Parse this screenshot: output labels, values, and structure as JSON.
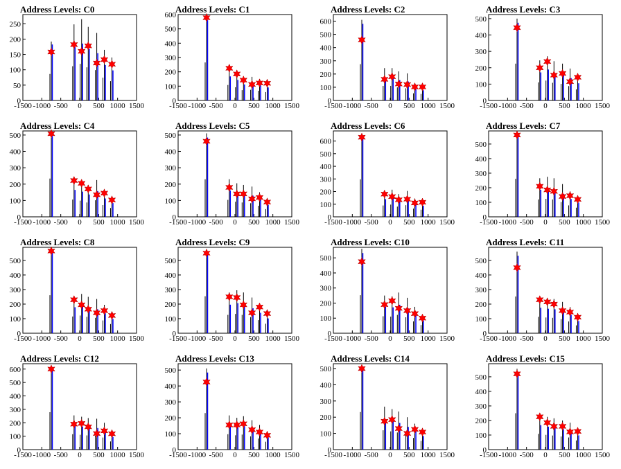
{
  "figure": {
    "x_tick_labels": [
      "-1500",
      "-1000",
      "-500",
      "0",
      "500",
      "1000",
      "1500"
    ],
    "colors": {
      "peak_marker": "#ff0000",
      "histogram": "#0000ff",
      "outline": "#000000"
    }
  },
  "chart_data": [
    {
      "type": "bar",
      "title": "Address Levels: C0",
      "xlim": [
        -1500,
        1500
      ],
      "ylim": [
        0,
        280
      ],
      "yticks": [
        0,
        50,
        100,
        150,
        200,
        250
      ],
      "peaks": [
        {
          "x": -750,
          "y": 158
        },
        {
          "x": -150,
          "y": 182
        },
        {
          "x": 50,
          "y": 160
        },
        {
          "x": 225,
          "y": 178
        },
        {
          "x": 450,
          "y": 122
        },
        {
          "x": 650,
          "y": 133
        },
        {
          "x": 850,
          "y": 118
        }
      ],
      "outline_peaks": [
        {
          "x": -750,
          "y": 192
        },
        {
          "x": -150,
          "y": 248
        },
        {
          "x": 50,
          "y": 265
        },
        {
          "x": 225,
          "y": 240
        },
        {
          "x": 450,
          "y": 220
        },
        {
          "x": 650,
          "y": 165
        },
        {
          "x": 850,
          "y": 140
        }
      ]
    },
    {
      "type": "bar",
      "title": "Address Levels: C1",
      "xlim": [
        -1500,
        1500
      ],
      "ylim": [
        0,
        600
      ],
      "yticks": [
        0,
        100,
        200,
        300,
        400,
        500,
        600
      ],
      "peaks": [
        {
          "x": -750,
          "y": 578
        },
        {
          "x": -150,
          "y": 225
        },
        {
          "x": 50,
          "y": 185
        },
        {
          "x": 225,
          "y": 142
        },
        {
          "x": 450,
          "y": 112
        },
        {
          "x": 650,
          "y": 122
        },
        {
          "x": 850,
          "y": 120
        }
      ],
      "outline_peaks": [
        {
          "x": -750,
          "y": 590
        },
        {
          "x": -150,
          "y": 240
        },
        {
          "x": 50,
          "y": 205
        },
        {
          "x": 225,
          "y": 160
        },
        {
          "x": 450,
          "y": 165
        },
        {
          "x": 650,
          "y": 150
        },
        {
          "x": 850,
          "y": 130
        }
      ]
    },
    {
      "type": "bar",
      "title": "Address Levels: C2",
      "xlim": [
        -1500,
        1500
      ],
      "ylim": [
        0,
        650
      ],
      "yticks": [
        0,
        100,
        200,
        300,
        400,
        500,
        600
      ],
      "peaks": [
        {
          "x": -750,
          "y": 458
        },
        {
          "x": -150,
          "y": 160
        },
        {
          "x": 50,
          "y": 180
        },
        {
          "x": 225,
          "y": 125
        },
        {
          "x": 450,
          "y": 120
        },
        {
          "x": 650,
          "y": 102
        },
        {
          "x": 850,
          "y": 102
        }
      ],
      "outline_peaks": [
        {
          "x": -750,
          "y": 610
        },
        {
          "x": -150,
          "y": 245
        },
        {
          "x": 50,
          "y": 245
        },
        {
          "x": 225,
          "y": 220
        },
        {
          "x": 450,
          "y": 205
        },
        {
          "x": 650,
          "y": 120
        },
        {
          "x": 850,
          "y": 110
        }
      ]
    },
    {
      "type": "bar",
      "title": "Address Levels: C3",
      "xlim": [
        -1500,
        1500
      ],
      "ylim": [
        0,
        525
      ],
      "yticks": [
        0,
        100,
        200,
        300,
        400,
        500
      ],
      "peaks": [
        {
          "x": -750,
          "y": 445
        },
        {
          "x": -150,
          "y": 200
        },
        {
          "x": 50,
          "y": 238
        },
        {
          "x": 225,
          "y": 155
        },
        {
          "x": 450,
          "y": 165
        },
        {
          "x": 650,
          "y": 115
        },
        {
          "x": 850,
          "y": 142
        }
      ],
      "outline_peaks": [
        {
          "x": -750,
          "y": 500
        },
        {
          "x": -150,
          "y": 245
        },
        {
          "x": 50,
          "y": 270
        },
        {
          "x": 225,
          "y": 240
        },
        {
          "x": 450,
          "y": 225
        },
        {
          "x": 650,
          "y": 195
        },
        {
          "x": 850,
          "y": 150
        }
      ]
    },
    {
      "type": "bar",
      "title": "Address Levels: C4",
      "xlim": [
        -1500,
        1500
      ],
      "ylim": [
        0,
        525
      ],
      "yticks": [
        0,
        100,
        200,
        300,
        400,
        500
      ],
      "peaks": [
        {
          "x": -750,
          "y": 508
        },
        {
          "x": -150,
          "y": 222
        },
        {
          "x": 50,
          "y": 205
        },
        {
          "x": 225,
          "y": 170
        },
        {
          "x": 450,
          "y": 135
        },
        {
          "x": 650,
          "y": 145
        },
        {
          "x": 850,
          "y": 103
        }
      ],
      "outline_peaks": [
        {
          "x": -750,
          "y": 520
        },
        {
          "x": -150,
          "y": 235
        },
        {
          "x": 50,
          "y": 220
        },
        {
          "x": 225,
          "y": 195
        },
        {
          "x": 450,
          "y": 225
        },
        {
          "x": 650,
          "y": 160
        },
        {
          "x": 850,
          "y": 120
        }
      ]
    },
    {
      "type": "bar",
      "title": "Address Levels: C5",
      "xlim": [
        -1500,
        1500
      ],
      "ylim": [
        0,
        525
      ],
      "yticks": [
        0,
        100,
        200,
        300,
        400,
        500
      ],
      "peaks": [
        {
          "x": -750,
          "y": 462
        },
        {
          "x": -150,
          "y": 180
        },
        {
          "x": 50,
          "y": 140
        },
        {
          "x": 225,
          "y": 140
        },
        {
          "x": 450,
          "y": 110
        },
        {
          "x": 650,
          "y": 118
        },
        {
          "x": 850,
          "y": 90
        }
      ],
      "outline_peaks": [
        {
          "x": -750,
          "y": 510
        },
        {
          "x": -150,
          "y": 230
        },
        {
          "x": 50,
          "y": 205
        },
        {
          "x": 225,
          "y": 195
        },
        {
          "x": 450,
          "y": 185
        },
        {
          "x": 650,
          "y": 150
        },
        {
          "x": 850,
          "y": 105
        }
      ]
    },
    {
      "type": "bar",
      "title": "Address Levels: C6",
      "xlim": [
        -1500,
        1500
      ],
      "ylim": [
        0,
        680
      ],
      "yticks": [
        0,
        100,
        200,
        300,
        400,
        500,
        600
      ],
      "peaks": [
        {
          "x": -750,
          "y": 630
        },
        {
          "x": -150,
          "y": 180
        },
        {
          "x": 50,
          "y": 160
        },
        {
          "x": 225,
          "y": 135
        },
        {
          "x": 450,
          "y": 140
        },
        {
          "x": 650,
          "y": 110
        },
        {
          "x": 850,
          "y": 115
        }
      ],
      "outline_peaks": [
        {
          "x": -750,
          "y": 660
        },
        {
          "x": -150,
          "y": 200
        },
        {
          "x": 50,
          "y": 215
        },
        {
          "x": 225,
          "y": 180
        },
        {
          "x": 450,
          "y": 205
        },
        {
          "x": 650,
          "y": 145
        },
        {
          "x": 850,
          "y": 125
        }
      ]
    },
    {
      "type": "bar",
      "title": "Address Levels: C7",
      "xlim": [
        -1500,
        1500
      ],
      "ylim": [
        0,
        590
      ],
      "yticks": [
        0,
        100,
        200,
        300,
        400,
        500
      ],
      "peaks": [
        {
          "x": -750,
          "y": 562
        },
        {
          "x": -150,
          "y": 210
        },
        {
          "x": 50,
          "y": 185
        },
        {
          "x": 225,
          "y": 175
        },
        {
          "x": 450,
          "y": 140
        },
        {
          "x": 650,
          "y": 145
        },
        {
          "x": 850,
          "y": 120
        }
      ],
      "outline_peaks": [
        {
          "x": -750,
          "y": 580
        },
        {
          "x": -150,
          "y": 265
        },
        {
          "x": 50,
          "y": 275
        },
        {
          "x": 225,
          "y": 265
        },
        {
          "x": 450,
          "y": 225
        },
        {
          "x": 650,
          "y": 175
        },
        {
          "x": 850,
          "y": 140
        }
      ]
    },
    {
      "type": "bar",
      "title": "Address Levels: C8",
      "xlim": [
        -1500,
        1500
      ],
      "ylim": [
        0,
        590
      ],
      "yticks": [
        0,
        100,
        200,
        300,
        400,
        500
      ],
      "peaks": [
        {
          "x": -750,
          "y": 565
        },
        {
          "x": -150,
          "y": 230
        },
        {
          "x": 50,
          "y": 195
        },
        {
          "x": 225,
          "y": 165
        },
        {
          "x": 450,
          "y": 140
        },
        {
          "x": 650,
          "y": 155
        },
        {
          "x": 850,
          "y": 122
        }
      ],
      "outline_peaks": [
        {
          "x": -750,
          "y": 580
        },
        {
          "x": -150,
          "y": 255
        },
        {
          "x": 50,
          "y": 270
        },
        {
          "x": 225,
          "y": 250
        },
        {
          "x": 450,
          "y": 235
        },
        {
          "x": 650,
          "y": 195
        },
        {
          "x": 850,
          "y": 140
        }
      ]
    },
    {
      "type": "bar",
      "title": "Address Levels: C9",
      "xlim": [
        -1500,
        1500
      ],
      "ylim": [
        0,
        590
      ],
      "yticks": [
        0,
        100,
        200,
        300,
        400,
        500
      ],
      "peaks": [
        {
          "x": -750,
          "y": 550
        },
        {
          "x": -150,
          "y": 250
        },
        {
          "x": 50,
          "y": 245
        },
        {
          "x": 225,
          "y": 195
        },
        {
          "x": 450,
          "y": 140
        },
        {
          "x": 650,
          "y": 180
        },
        {
          "x": 850,
          "y": 135
        }
      ],
      "outline_peaks": [
        {
          "x": -750,
          "y": 565
        },
        {
          "x": -150,
          "y": 280
        },
        {
          "x": 50,
          "y": 295
        },
        {
          "x": 225,
          "y": 280
        },
        {
          "x": 450,
          "y": 245
        },
        {
          "x": 650,
          "y": 200
        },
        {
          "x": 850,
          "y": 145
        }
      ]
    },
    {
      "type": "bar",
      "title": "Address Levels: C10",
      "xlim": [
        -1500,
        1500
      ],
      "ylim": [
        0,
        570
      ],
      "yticks": [
        0,
        100,
        200,
        300,
        400,
        500
      ],
      "peaks": [
        {
          "x": -750,
          "y": 475
        },
        {
          "x": -150,
          "y": 190
        },
        {
          "x": 50,
          "y": 215
        },
        {
          "x": 225,
          "y": 165
        },
        {
          "x": 450,
          "y": 150
        },
        {
          "x": 650,
          "y": 130
        },
        {
          "x": 850,
          "y": 100
        }
      ],
      "outline_peaks": [
        {
          "x": -750,
          "y": 560
        },
        {
          "x": -150,
          "y": 250
        },
        {
          "x": 50,
          "y": 245
        },
        {
          "x": 225,
          "y": 270
        },
        {
          "x": 450,
          "y": 235
        },
        {
          "x": 650,
          "y": 175
        },
        {
          "x": 850,
          "y": 120
        }
      ]
    },
    {
      "type": "bar",
      "title": "Address Levels: C11",
      "xlim": [
        -1500,
        1500
      ],
      "ylim": [
        0,
        590
      ],
      "yticks": [
        0,
        100,
        200,
        300,
        400,
        500
      ],
      "peaks": [
        {
          "x": -750,
          "y": 450
        },
        {
          "x": -150,
          "y": 230
        },
        {
          "x": 50,
          "y": 215
        },
        {
          "x": 225,
          "y": 200
        },
        {
          "x": 450,
          "y": 155
        },
        {
          "x": 650,
          "y": 145
        },
        {
          "x": 850,
          "y": 110
        }
      ],
      "outline_peaks": [
        {
          "x": -750,
          "y": 560
        },
        {
          "x": -150,
          "y": 250
        },
        {
          "x": 50,
          "y": 240
        },
        {
          "x": 225,
          "y": 235
        },
        {
          "x": 450,
          "y": 215
        },
        {
          "x": 650,
          "y": 180
        },
        {
          "x": 850,
          "y": 120
        }
      ]
    },
    {
      "type": "bar",
      "title": "Address Levels: C12",
      "xlim": [
        -1500,
        1500
      ],
      "ylim": [
        0,
        640
      ],
      "yticks": [
        0,
        100,
        200,
        300,
        400,
        500,
        600
      ],
      "peaks": [
        {
          "x": -750,
          "y": 600
        },
        {
          "x": -150,
          "y": 190
        },
        {
          "x": 50,
          "y": 195
        },
        {
          "x": 225,
          "y": 170
        },
        {
          "x": 450,
          "y": 120
        },
        {
          "x": 650,
          "y": 140
        },
        {
          "x": 850,
          "y": 118
        }
      ],
      "outline_peaks": [
        {
          "x": -750,
          "y": 620
        },
        {
          "x": -150,
          "y": 255
        },
        {
          "x": 50,
          "y": 245
        },
        {
          "x": 225,
          "y": 235
        },
        {
          "x": 450,
          "y": 230
        },
        {
          "x": 650,
          "y": 200
        },
        {
          "x": 850,
          "y": 135
        }
      ]
    },
    {
      "type": "bar",
      "title": "Address Levels: C13",
      "xlim": [
        -1500,
        1500
      ],
      "ylim": [
        0,
        540
      ],
      "yticks": [
        0,
        100,
        200,
        300,
        400,
        500
      ],
      "peaks": [
        {
          "x": -750,
          "y": 425
        },
        {
          "x": -150,
          "y": 155
        },
        {
          "x": 50,
          "y": 155
        },
        {
          "x": 225,
          "y": 162
        },
        {
          "x": 450,
          "y": 125
        },
        {
          "x": 650,
          "y": 110
        },
        {
          "x": 850,
          "y": 90
        }
      ],
      "outline_peaks": [
        {
          "x": -750,
          "y": 510
        },
        {
          "x": -150,
          "y": 215
        },
        {
          "x": 50,
          "y": 200
        },
        {
          "x": 225,
          "y": 210
        },
        {
          "x": 450,
          "y": 185
        },
        {
          "x": 650,
          "y": 155
        },
        {
          "x": 850,
          "y": 110
        }
      ]
    },
    {
      "type": "bar",
      "title": "Address Levels: C14",
      "xlim": [
        -1500,
        1500
      ],
      "ylim": [
        0,
        530
      ],
      "yticks": [
        0,
        100,
        200,
        300,
        400,
        500
      ],
      "peaks": [
        {
          "x": -750,
          "y": 500
        },
        {
          "x": -150,
          "y": 175
        },
        {
          "x": 50,
          "y": 185
        },
        {
          "x": 225,
          "y": 130
        },
        {
          "x": 450,
          "y": 100
        },
        {
          "x": 650,
          "y": 125
        },
        {
          "x": 850,
          "y": 108
        }
      ],
      "outline_peaks": [
        {
          "x": -750,
          "y": 515
        },
        {
          "x": -150,
          "y": 265
        },
        {
          "x": 50,
          "y": 250
        },
        {
          "x": 225,
          "y": 235
        },
        {
          "x": 450,
          "y": 200
        },
        {
          "x": 650,
          "y": 160
        },
        {
          "x": 850,
          "y": 120
        }
      ]
    },
    {
      "type": "bar",
      "title": "Address Levels: C15",
      "xlim": [
        -1500,
        1500
      ],
      "ylim": [
        0,
        590
      ],
      "yticks": [
        0,
        100,
        200,
        300,
        400,
        500
      ],
      "peaks": [
        {
          "x": -750,
          "y": 520
        },
        {
          "x": -150,
          "y": 225
        },
        {
          "x": 50,
          "y": 185
        },
        {
          "x": 225,
          "y": 160
        },
        {
          "x": 450,
          "y": 160
        },
        {
          "x": 650,
          "y": 122
        },
        {
          "x": 850,
          "y": 125
        }
      ],
      "outline_peaks": [
        {
          "x": -750,
          "y": 555
        },
        {
          "x": -150,
          "y": 240
        },
        {
          "x": 50,
          "y": 225
        },
        {
          "x": 225,
          "y": 215
        },
        {
          "x": 450,
          "y": 200
        },
        {
          "x": 650,
          "y": 185
        },
        {
          "x": 850,
          "y": 140
        }
      ]
    }
  ]
}
